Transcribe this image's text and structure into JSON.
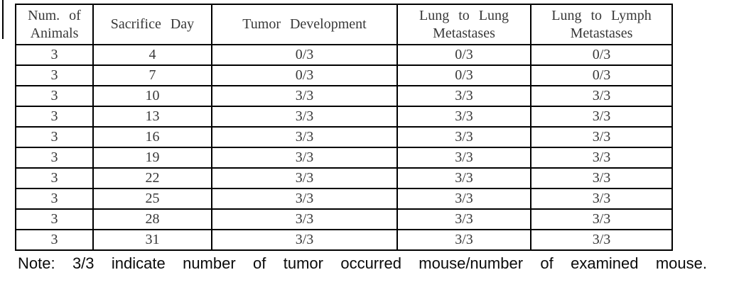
{
  "colors": {
    "background": "#ffffff",
    "table_border": "#000000",
    "table_text": "#383838",
    "note_text": "#0a0a0a"
  },
  "table": {
    "headers": [
      {
        "id": "num-animals",
        "label": "Num. of Animals",
        "lines": [
          "Num. of",
          "Animals"
        ]
      },
      {
        "id": "sacrifice-day",
        "label": "Sacrifice Day",
        "lines": [
          "Sacrifice Day"
        ]
      },
      {
        "id": "tumor-development",
        "label": "Tumor Development",
        "lines": [
          "Tumor Development"
        ]
      },
      {
        "id": "lung-to-lung-metastases",
        "label": "Lung to Lung Metastases",
        "lines": [
          "Lung to Lung",
          "Metastases"
        ]
      },
      {
        "id": "lung-to-lymph-metastases",
        "label": "Lung to Lymph Metastases",
        "lines": [
          "Lung to Lymph",
          "Metastases"
        ]
      }
    ]
  },
  "chart_data": {
    "type": "table",
    "columns": [
      "Num. of Animals",
      "Sacrifice Day",
      "Tumor Development",
      "Lung to Lung Metastases",
      "Lung to Lymph Metastases"
    ],
    "rows": [
      [
        "3",
        "4",
        "0/3",
        "0/3",
        "0/3"
      ],
      [
        "3",
        "7",
        "0/3",
        "0/3",
        "0/3"
      ],
      [
        "3",
        "10",
        "3/3",
        "3/3",
        "3/3"
      ],
      [
        "3",
        "13",
        "3/3",
        "3/3",
        "3/3"
      ],
      [
        "3",
        "16",
        "3/3",
        "3/3",
        "3/3"
      ],
      [
        "3",
        "19",
        "3/3",
        "3/3",
        "3/3"
      ],
      [
        "3",
        "22",
        "3/3",
        "3/3",
        "3/3"
      ],
      [
        "3",
        "25",
        "3/3",
        "3/3",
        "3/3"
      ],
      [
        "3",
        "28",
        "3/3",
        "3/3",
        "3/3"
      ],
      [
        "3",
        "31",
        "3/3",
        "3/3",
        "3/3"
      ]
    ],
    "note": "Note: 3/3 indicate number of tumor occurred mouse/number of examined mouse."
  },
  "note": "Note: 3/3 indicate number of tumor occurred mouse/number of examined mouse."
}
